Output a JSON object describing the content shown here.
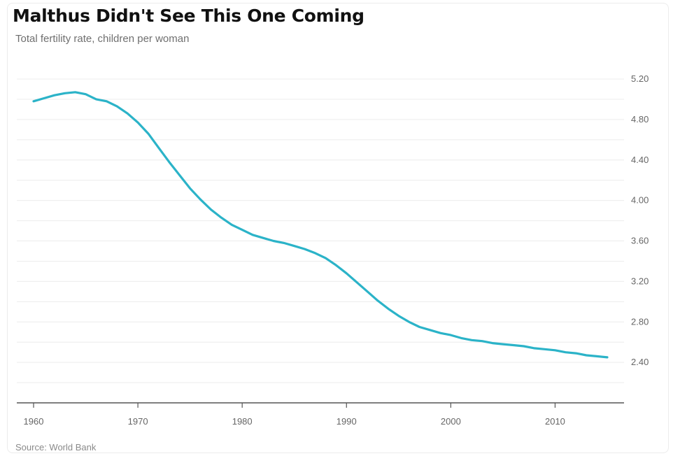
{
  "header": {
    "title": "Malthus Didn't See This One Coming",
    "subtitle": "Total fertility rate, children per woman"
  },
  "footer": {
    "source": "Source: World Bank"
  },
  "colors": {
    "line": "#2bb3c8",
    "axis": "#555555",
    "grid": "#ececec"
  },
  "chart_data": {
    "type": "line",
    "title": "Malthus Didn't See This One Coming",
    "subtitle": "Total fertility rate, children per woman",
    "xlabel": "",
    "ylabel": "",
    "xlim": [
      1960,
      2015
    ],
    "ylim": [
      2.0,
      5.2
    ],
    "x_ticks": [
      1960,
      1970,
      1980,
      1990,
      2000,
      2010
    ],
    "x_tick_labels": [
      "1960",
      "1970",
      "1980",
      "1990",
      "2000",
      "2010"
    ],
    "y_ticks": [
      2.4,
      2.8,
      3.2,
      3.6,
      4.0,
      4.4,
      4.8,
      5.2
    ],
    "y_tick_labels": [
      "2.40",
      "2.80",
      "3.20",
      "3.60",
      "4.00",
      "4.40",
      "4.80",
      "5.20"
    ],
    "y_axis_side": "right",
    "grid": true,
    "legend": "none",
    "series": [
      {
        "x": [
          1960,
          1961,
          1962,
          1963,
          1964,
          1965,
          1966,
          1967,
          1968,
          1969,
          1970,
          1971,
          1972,
          1973,
          1974,
          1975,
          1976,
          1977,
          1978,
          1979,
          1980,
          1981,
          1982,
          1983,
          1984,
          1985,
          1986,
          1987,
          1988,
          1989,
          1990,
          1991,
          1992,
          1993,
          1994,
          1995,
          1996,
          1997,
          1998,
          1999,
          2000,
          2001,
          2002,
          2003,
          2004,
          2005,
          2006,
          2007,
          2008,
          2009,
          2010,
          2011,
          2012,
          2013,
          2014,
          2015
        ],
        "values": [
          4.98,
          5.01,
          5.04,
          5.06,
          5.07,
          5.05,
          5.0,
          4.98,
          4.93,
          4.86,
          4.77,
          4.66,
          4.52,
          4.38,
          4.25,
          4.12,
          4.01,
          3.91,
          3.83,
          3.76,
          3.71,
          3.66,
          3.63,
          3.6,
          3.58,
          3.55,
          3.52,
          3.48,
          3.43,
          3.36,
          3.28,
          3.19,
          3.1,
          3.01,
          2.93,
          2.86,
          2.8,
          2.75,
          2.72,
          2.69,
          2.67,
          2.64,
          2.62,
          2.61,
          2.59,
          2.58,
          2.57,
          2.56,
          2.54,
          2.53,
          2.52,
          2.5,
          2.49,
          2.47,
          2.46,
          2.45
        ]
      }
    ]
  }
}
